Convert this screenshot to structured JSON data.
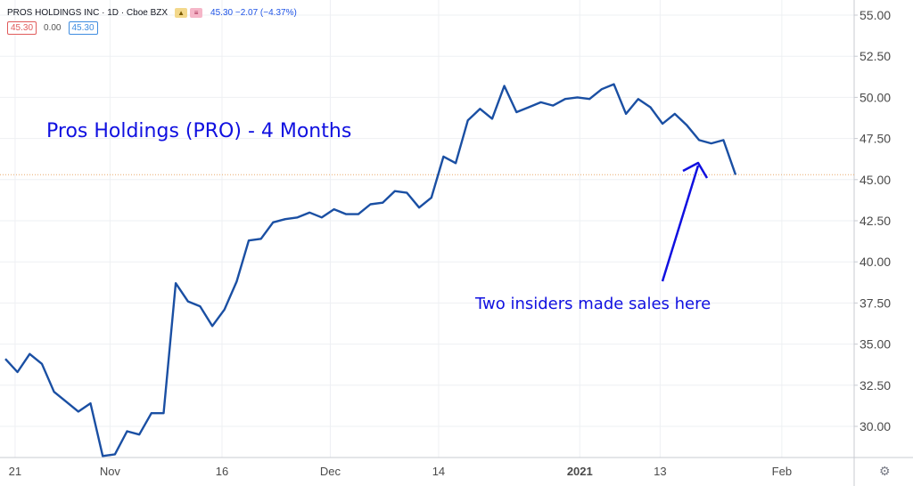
{
  "header": {
    "symbol": "PROS HOLDINGS INC · 1D · Cboe BZX",
    "ohlc_text": "45.30 −2.07 (−4.37%)",
    "price_box_left": "45.30",
    "price_change": "0.00",
    "price_box_right": "45.30"
  },
  "colors": {
    "line": "#1a4fa3",
    "annotation": "#1010e0",
    "grid": "#eef0f3",
    "axis_text": "#4a4a4a",
    "price_line": "#e8a96a"
  },
  "chart_data": {
    "type": "line",
    "title": "Pros Holdings (PRO) - 4 Months",
    "annotation": "Two insiders made sales here",
    "last_price": 45.3,
    "ylim": [
      28.0,
      56.0
    ],
    "y_ticks": [
      30.0,
      32.5,
      35.0,
      37.5,
      40.0,
      42.5,
      45.0,
      47.5,
      50.0,
      52.5,
      55.0
    ],
    "y_tick_labels": [
      "30.00",
      "32.50",
      "35.00",
      "37.50",
      "40.00",
      "42.50",
      "45.00",
      "47.50",
      "50.00",
      "52.50",
      "55.00"
    ],
    "x_tick_labels": [
      "21",
      "Nov",
      "16",
      "Dec",
      "14",
      "2021",
      "13",
      "Feb"
    ],
    "x_tick_index": [
      0.8,
      8.6,
      17.8,
      26.7,
      35.6,
      47.2,
      53.8,
      63.8
    ],
    "x_tick_bold": [
      false,
      false,
      false,
      false,
      false,
      true,
      false,
      false
    ],
    "series": [
      {
        "values": [
          34.1,
          33.3,
          34.4,
          33.8,
          32.1,
          31.5,
          30.9,
          31.4,
          28.2,
          28.3,
          29.7,
          29.5,
          30.8,
          30.8,
          38.7,
          37.6,
          37.3,
          36.1,
          37.1,
          38.8,
          41.3,
          41.4,
          42.4,
          42.6,
          42.7,
          43.0,
          42.7,
          43.2,
          42.9,
          42.9,
          43.5,
          43.6,
          44.3,
          44.2,
          43.3,
          43.9,
          46.4,
          46.0,
          48.6,
          49.3,
          48.7,
          50.7,
          49.1,
          49.4,
          49.7,
          49.5,
          49.9,
          50.0,
          49.9,
          50.5,
          50.8,
          49.0,
          49.9,
          49.4,
          48.4,
          49.0,
          48.3,
          47.4,
          47.2,
          47.4,
          45.3
        ]
      }
    ]
  }
}
